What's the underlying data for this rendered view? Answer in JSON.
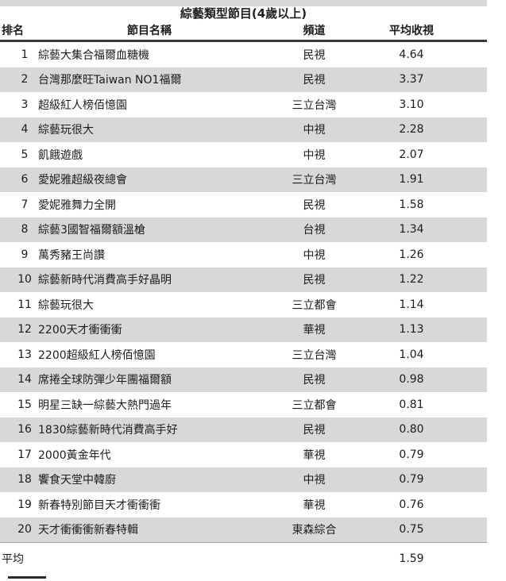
{
  "chart_data": {
    "type": "table",
    "title": "綜藝類型節目(4歲以上)",
    "columns": [
      "排名",
      "節目名稱",
      "頻道",
      "平均收視"
    ],
    "rows": [
      [
        "1",
        "綜藝大集合福爾血糖機",
        "民視",
        "4.64"
      ],
      [
        "2",
        "台灣那麼旺Taiwan NO1福爾",
        "民視",
        "3.37"
      ],
      [
        "3",
        "超級紅人榜佰憶園",
        "三立台灣",
        "3.10"
      ],
      [
        "4",
        "綜藝玩很大",
        "中視",
        "2.28"
      ],
      [
        "5",
        "飢餓遊戲",
        "中視",
        "2.07"
      ],
      [
        "6",
        "愛妮雅超級夜總會",
        "三立台灣",
        "1.91"
      ],
      [
        "7",
        "愛妮雅舞力全開",
        "民視",
        "1.58"
      ],
      [
        "8",
        "綜藝3國智福爾額溫槍",
        "台視",
        "1.34"
      ],
      [
        "9",
        "萬秀豬王尚讚",
        "中視",
        "1.26"
      ],
      [
        "10",
        "綜藝新時代消費高手好晶明",
        "民視",
        "1.22"
      ],
      [
        "11",
        "綜藝玩很大",
        "三立都會",
        "1.14"
      ],
      [
        "12",
        "2200天才衝衝衝",
        "華視",
        "1.13"
      ],
      [
        "13",
        "2200超級紅人榜佰憶園",
        "三立台灣",
        "1.04"
      ],
      [
        "14",
        "席捲全球防彈少年團福爾額",
        "民視",
        "0.98"
      ],
      [
        "15",
        "明星三缺一綜藝大熱門過年",
        "三立都會",
        "0.81"
      ],
      [
        "16",
        "1830綜藝新時代消費高手好",
        "民視",
        "0.80"
      ],
      [
        "17",
        "2000黃金年代",
        "華視",
        "0.79"
      ],
      [
        "18",
        "饗食天堂中韓廚",
        "中視",
        "0.79"
      ],
      [
        "19",
        "新春特別節目天才衝衝衝",
        "華視",
        "0.76"
      ],
      [
        "20",
        "天才衝衝衝新春特輯",
        "東森綜合",
        "0.75"
      ]
    ],
    "footer": {
      "label": "平均",
      "value": "1.59"
    },
    "layout_hints": {
      "striped_rows": "even rows gray",
      "header_rule": "dark solid line under column headers",
      "footer_rule": "thin gray line above average row"
    }
  },
  "colors": {
    "row_stripe": "#d8d8d8",
    "top_band": "#d8d8d8",
    "header_rule": "#3a3a3a",
    "footer_rule": "#9f9f9f",
    "text": "#1c1c1c",
    "background": "#ffffff"
  }
}
